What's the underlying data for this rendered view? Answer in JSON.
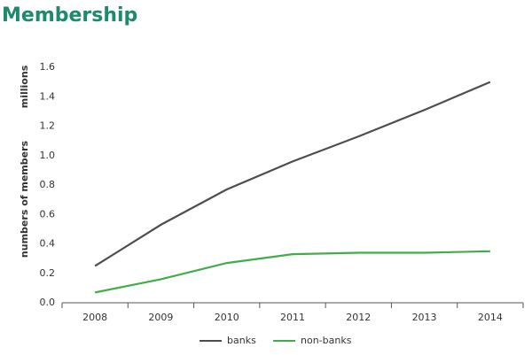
{
  "chart_data": {
    "type": "line",
    "title": "Membership",
    "ylabel": "numbers of members",
    "yunit": "millions",
    "categories": [
      "2008",
      "2009",
      "2010",
      "2011",
      "2012",
      "2013",
      "2014"
    ],
    "series": [
      {
        "name": "banks",
        "color": "#4d4d4f",
        "values": [
          0.25,
          0.53,
          0.77,
          0.96,
          1.13,
          1.31,
          1.5
        ]
      },
      {
        "name": "non-banks",
        "color": "#3fae49",
        "values": [
          0.07,
          0.16,
          0.27,
          0.33,
          0.34,
          0.34,
          0.35
        ]
      }
    ],
    "ylim": [
      0,
      1.6
    ],
    "yticks": [
      {
        "value": 0,
        "label": "0.0"
      },
      0.2,
      0.4,
      0.6,
      0.8,
      {
        "value": 1,
        "label": "1.0"
      },
      1.2,
      1.4,
      1.6
    ],
    "grid": false,
    "legend": "bottom"
  }
}
